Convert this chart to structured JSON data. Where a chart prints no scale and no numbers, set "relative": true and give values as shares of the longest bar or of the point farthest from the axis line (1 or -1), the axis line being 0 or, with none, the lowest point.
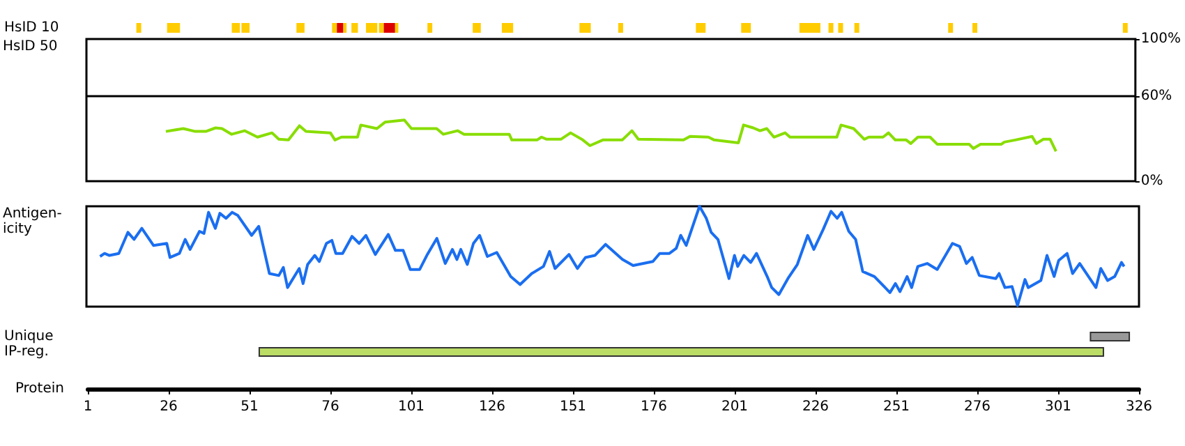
{
  "chart_data": [
    {
      "type": "bar",
      "orientation": "horizontal",
      "categories": [
        "HsID 10"
      ],
      "xlim": [
        1,
        326
      ],
      "tick_labels": "y",
      "series": [
        {
          "color": "#ffcc00",
          "base": [
            16
          ],
          "values": [
            1.5
          ]
        },
        {
          "color": "#ffcc00",
          "base": [
            25.5
          ],
          "values": [
            4
          ]
        },
        {
          "color": "#ffcc00",
          "base": [
            45.5
          ],
          "values": [
            2.5
          ]
        },
        {
          "color": "#ffcc00",
          "base": [
            48.5
          ],
          "values": [
            2.5
          ]
        },
        {
          "color": "#ffcc00",
          "base": [
            65.5
          ],
          "values": [
            2.5
          ]
        },
        {
          "color": "#ffcc00",
          "base": [
            76.5
          ],
          "values": [
            1.5
          ]
        },
        {
          "color": "#dd0000",
          "base": [
            78
          ],
          "values": [
            2
          ]
        },
        {
          "color": "#ffcc00",
          "base": [
            80
          ],
          "values": [
            1
          ]
        },
        {
          "color": "#ffcc00",
          "base": [
            82.5
          ],
          "values": [
            2
          ]
        },
        {
          "color": "#ffcc00",
          "base": [
            87
          ],
          "values": [
            3.5
          ]
        },
        {
          "color": "#ffcc00",
          "base": [
            91
          ],
          "values": [
            1.5
          ]
        },
        {
          "color": "#dd0000",
          "base": [
            92.5
          ],
          "values": [
            3.5
          ]
        },
        {
          "color": "#ffcc00",
          "base": [
            96
          ],
          "values": [
            1
          ]
        },
        {
          "color": "#ffcc00",
          "base": [
            106
          ],
          "values": [
            1.5
          ]
        },
        {
          "color": "#ffcc00",
          "base": [
            120
          ],
          "values": [
            2.5
          ]
        },
        {
          "color": "#ffcc00",
          "base": [
            129
          ],
          "values": [
            3.5
          ]
        },
        {
          "color": "#ffcc00",
          "base": [
            153
          ],
          "values": [
            3.5
          ]
        },
        {
          "color": "#ffcc00",
          "base": [
            165
          ],
          "values": [
            1.5
          ]
        },
        {
          "color": "#ffcc00",
          "base": [
            189
          ],
          "values": [
            3
          ]
        },
        {
          "color": "#ffcc00",
          "base": [
            203
          ],
          "values": [
            3
          ]
        },
        {
          "color": "#ffcc00",
          "base": [
            221
          ],
          "values": [
            6.5
          ]
        },
        {
          "color": "#ffcc00",
          "base": [
            230
          ],
          "values": [
            1.5
          ]
        },
        {
          "color": "#ffcc00",
          "base": [
            233
          ],
          "values": [
            1.5
          ]
        },
        {
          "color": "#ffcc00",
          "base": [
            238
          ],
          "values": [
            1.5
          ]
        },
        {
          "color": "#ffcc00",
          "base": [
            267
          ],
          "values": [
            1.5
          ]
        },
        {
          "color": "#ffcc00",
          "base": [
            274.5
          ],
          "values": [
            1.5
          ]
        },
        {
          "color": "#ffcc00",
          "base": [
            321
          ],
          "values": [
            1.5
          ]
        }
      ]
    },
    {
      "type": "line",
      "ylabel": "HsID 50",
      "xlim": [
        1,
        326
      ],
      "ylim": [
        0,
        100
      ],
      "yticks": [
        {
          "value": 0,
          "label": "0%"
        },
        {
          "value": 60,
          "label": "60%"
        },
        {
          "value": 100,
          "label": "100%"
        }
      ],
      "tick_labels": "y",
      "ref_lines": [
        {
          "axis": "y",
          "value": 60,
          "color": "#000000"
        }
      ],
      "x": [
        25.6,
        31,
        34.7,
        38,
        41,
        43,
        46,
        50,
        54,
        58.5,
        60.6,
        63.6,
        67,
        69,
        76.6,
        78,
        80,
        85,
        86,
        91,
        93.5,
        99.5,
        101.7,
        109.5,
        111.6,
        116,
        118,
        132,
        132.8,
        140.6,
        142,
        143.6,
        148,
        151,
        154.8,
        157,
        161,
        167,
        170,
        172,
        186,
        188,
        193.7,
        195.5,
        203,
        204.6,
        207.6,
        209.7,
        211.8,
        214,
        217.5,
        219,
        233.5,
        234.8,
        238.7,
        242,
        243.4,
        247.8,
        249.5,
        251.6,
        255,
        256.4,
        258.6,
        262.4,
        264.6,
        274.5,
        275.8,
        278,
        284.5,
        285.4,
        288.8,
        294,
        295.3,
        297.5,
        299.6,
        301.4
      ],
      "series": [
        {
          "color": "#88dd00",
          "values": [
            35,
            37,
            35,
            35,
            37.5,
            37,
            33,
            35.5,
            31,
            34,
            29.5,
            29,
            39,
            35,
            34,
            29,
            31,
            31,
            39.5,
            37,
            41.5,
            43,
            37,
            37,
            33,
            35.5,
            33,
            33,
            29,
            29,
            31,
            29.5,
            29.5,
            34,
            29,
            25,
            29,
            29,
            35.5,
            29.5,
            29,
            31.5,
            31,
            29,
            27,
            39.5,
            37.5,
            35.5,
            37,
            31,
            34,
            31,
            31,
            39.5,
            37,
            29.5,
            31,
            31,
            34,
            29,
            29,
            26.5,
            31,
            31,
            26,
            26,
            23,
            26,
            26,
            27.5,
            29,
            31.5,
            26.5,
            29.5,
            29.5,
            21
          ]
        }
      ]
    },
    {
      "type": "line",
      "ylabel": "Antigen-\nicity",
      "relative": true,
      "xlim": [
        1,
        326
      ],
      "tick_labels": false,
      "x": [
        5.2,
        6.6,
        8.1,
        11,
        13.8,
        15.7,
        18.1,
        21.7,
        25.8,
        26.8,
        29.7,
        31.5,
        33,
        35.9,
        37.3,
        38.7,
        40.8,
        42.2,
        44.1,
        46,
        47.7,
        52,
        54.2,
        55.6,
        57.5,
        60.4,
        61.8,
        63.1,
        66.7,
        67.9,
        69.3,
        71.5,
        72.9,
        75.1,
        76.8,
        78,
        80.1,
        83,
        85.2,
        87.3,
        90.2,
        94.2,
        96.4,
        98.8,
        101,
        103.9,
        106.1,
        109.2,
        111.8,
        114,
        115.4,
        116.6,
        118.6,
        120.5,
        122.4,
        124.8,
        127.7,
        132,
        134.9,
        138.5,
        142.1,
        144,
        145.7,
        150,
        152.6,
        155.1,
        158,
        161.3,
        166.5,
        169.8,
        175.9,
        178,
        181,
        183.1,
        184.5,
        186.2,
        190.3,
        192.4,
        193.9,
        196,
        199.4,
        201.1,
        202.1,
        204,
        206.1,
        207.9,
        211.2,
        212.6,
        214.8,
        217.6,
        220.5,
        223.7,
        225.6,
        228.5,
        230.9,
        232.8,
        234.2,
        236.4,
        238.5,
        240.7,
        244.3,
        249.1,
        250.8,
        252.2,
        254.4,
        255.8,
        257.7,
        260.6,
        263.7,
        268.4,
        270.6,
        272.7,
        274.5,
        276.7,
        281.8,
        282.8,
        284.6,
        286.8,
        288.5,
        290.8,
        291.8,
        295.7,
        297.6,
        299.8,
        301.2,
        303.8,
        305.5,
        307.7,
        312.7,
        314.2,
        316.3,
        318.5,
        320.6,
        321.4
      ],
      "series": [
        {
          "color": "#1a6ef0",
          "values": [
            0.5,
            0.53,
            0.51,
            0.53,
            0.74,
            0.67,
            0.78,
            0.61,
            0.63,
            0.49,
            0.53,
            0.67,
            0.57,
            0.75,
            0.73,
            0.94,
            0.78,
            0.93,
            0.88,
            0.94,
            0.91,
            0.71,
            0.8,
            0.6,
            0.33,
            0.31,
            0.39,
            0.19,
            0.38,
            0.23,
            0.42,
            0.51,
            0.45,
            0.63,
            0.66,
            0.53,
            0.53,
            0.7,
            0.63,
            0.71,
            0.52,
            0.72,
            0.56,
            0.56,
            0.37,
            0.37,
            0.51,
            0.68,
            0.43,
            0.57,
            0.47,
            0.57,
            0.42,
            0.63,
            0.71,
            0.5,
            0.54,
            0.3,
            0.22,
            0.33,
            0.4,
            0.55,
            0.38,
            0.52,
            0.38,
            0.49,
            0.51,
            0.62,
            0.47,
            0.41,
            0.45,
            0.53,
            0.53,
            0.58,
            0.71,
            0.61,
            1,
            0.88,
            0.74,
            0.67,
            0.28,
            0.51,
            0.4,
            0.51,
            0.44,
            0.53,
            0.3,
            0.19,
            0.12,
            0.28,
            0.42,
            0.71,
            0.57,
            0.77,
            0.95,
            0.88,
            0.94,
            0.75,
            0.67,
            0.35,
            0.3,
            0.14,
            0.23,
            0.15,
            0.3,
            0.19,
            0.4,
            0.43,
            0.37,
            0.63,
            0.6,
            0.43,
            0.49,
            0.31,
            0.28,
            0.33,
            0.19,
            0.2,
            0.01,
            0.27,
            0.19,
            0.26,
            0.51,
            0.3,
            0.46,
            0.53,
            0.33,
            0.43,
            0.19,
            0.38,
            0.26,
            0.3,
            0.44,
            0.4
          ]
        }
      ]
    },
    {
      "type": "bar",
      "orientation": "horizontal",
      "categories": [
        "Unique",
        "IP-reg."
      ],
      "xlabel": "Protein",
      "xlim": [
        1,
        326
      ],
      "xticks": [
        1,
        26,
        51,
        76,
        101,
        126,
        151,
        176,
        201,
        226,
        251,
        276,
        301,
        326
      ],
      "base": [
        311,
        54
      ],
      "values": [
        12,
        261
      ],
      "colors": [
        "#999999",
        "#bbdd66"
      ]
    }
  ]
}
